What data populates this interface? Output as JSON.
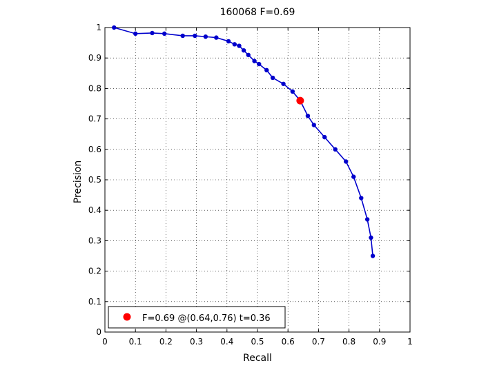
{
  "chart_data": {
    "type": "line",
    "title": "160068 F=0.69",
    "xlabel": "Recall",
    "ylabel": "Precision",
    "xlim": [
      0,
      1
    ],
    "ylim": [
      0,
      1
    ],
    "xticks": [
      "0",
      "0.1",
      "0.2",
      "0.3",
      "0.4",
      "0.5",
      "0.6",
      "0.7",
      "0.8",
      "0.9",
      "1"
    ],
    "yticks": [
      "0",
      "0.1",
      "0.2",
      "0.3",
      "0.4",
      "0.5",
      "0.6",
      "0.7",
      "0.8",
      "0.9",
      "1"
    ],
    "grid": true,
    "series": [
      {
        "color": "#0000cc",
        "points": [
          [
            0.03,
            1.0
          ],
          [
            0.1,
            0.98
          ],
          [
            0.155,
            0.982
          ],
          [
            0.195,
            0.98
          ],
          [
            0.255,
            0.973
          ],
          [
            0.295,
            0.973
          ],
          [
            0.33,
            0.97
          ],
          [
            0.365,
            0.967
          ],
          [
            0.405,
            0.955
          ],
          [
            0.425,
            0.945
          ],
          [
            0.44,
            0.94
          ],
          [
            0.455,
            0.925
          ],
          [
            0.47,
            0.91
          ],
          [
            0.49,
            0.89
          ],
          [
            0.505,
            0.88
          ],
          [
            0.53,
            0.86
          ],
          [
            0.55,
            0.835
          ],
          [
            0.585,
            0.815
          ],
          [
            0.615,
            0.79
          ],
          [
            0.64,
            0.76
          ],
          [
            0.665,
            0.71
          ],
          [
            0.685,
            0.68
          ],
          [
            0.72,
            0.64
          ],
          [
            0.755,
            0.6
          ],
          [
            0.79,
            0.56
          ],
          [
            0.815,
            0.51
          ],
          [
            0.84,
            0.44
          ],
          [
            0.86,
            0.37
          ],
          [
            0.872,
            0.31
          ],
          [
            0.878,
            0.25
          ]
        ]
      }
    ],
    "highlight": {
      "x": 0.64,
      "y": 0.76,
      "color": "#ff0000"
    },
    "legend": {
      "position": "bottom-left",
      "text": "F=0.69 @(0.64,0.76) t=0.36"
    }
  }
}
